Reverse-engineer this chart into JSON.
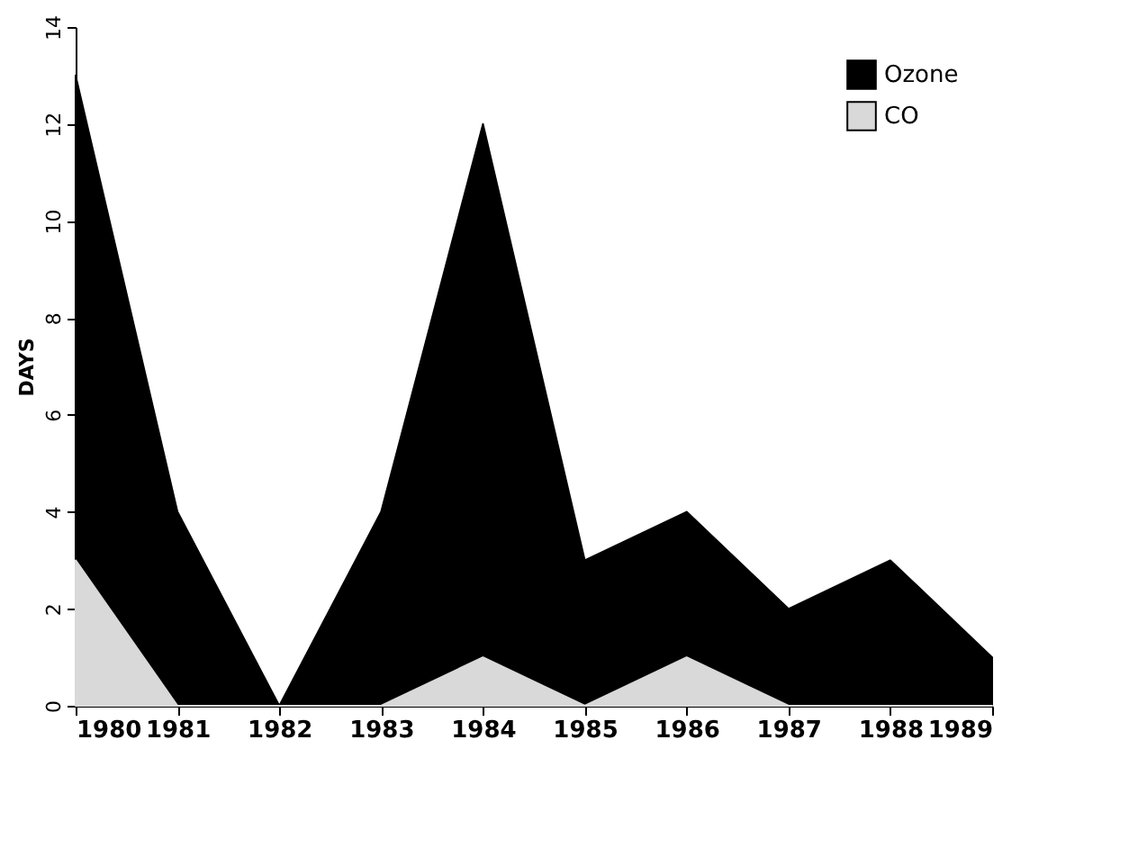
{
  "chart_data": {
    "type": "area",
    "ylabel": "DAYS",
    "x": [
      1980,
      1981,
      1982,
      1983,
      1984,
      1985,
      1986,
      1987,
      1988,
      1989
    ],
    "series": [
      {
        "name": "Ozone",
        "color": "#000000",
        "values": [
          13,
          4,
          0,
          4,
          12,
          3,
          4,
          2,
          3,
          1
        ]
      },
      {
        "name": "CO",
        "color": "#d9d9d9",
        "values": [
          3,
          0,
          0,
          0,
          1,
          0,
          1,
          0,
          0,
          0
        ]
      }
    ],
    "xlim": [
      1980,
      1989
    ],
    "xticks": [
      1980,
      1981,
      1982,
      1983,
      1984,
      1985,
      1986,
      1987,
      1988,
      1989
    ],
    "ylim": [
      0,
      14
    ],
    "yticks": [
      0,
      2,
      4,
      6,
      8,
      10,
      12,
      14
    ],
    "grid": false,
    "legend": "top right"
  }
}
